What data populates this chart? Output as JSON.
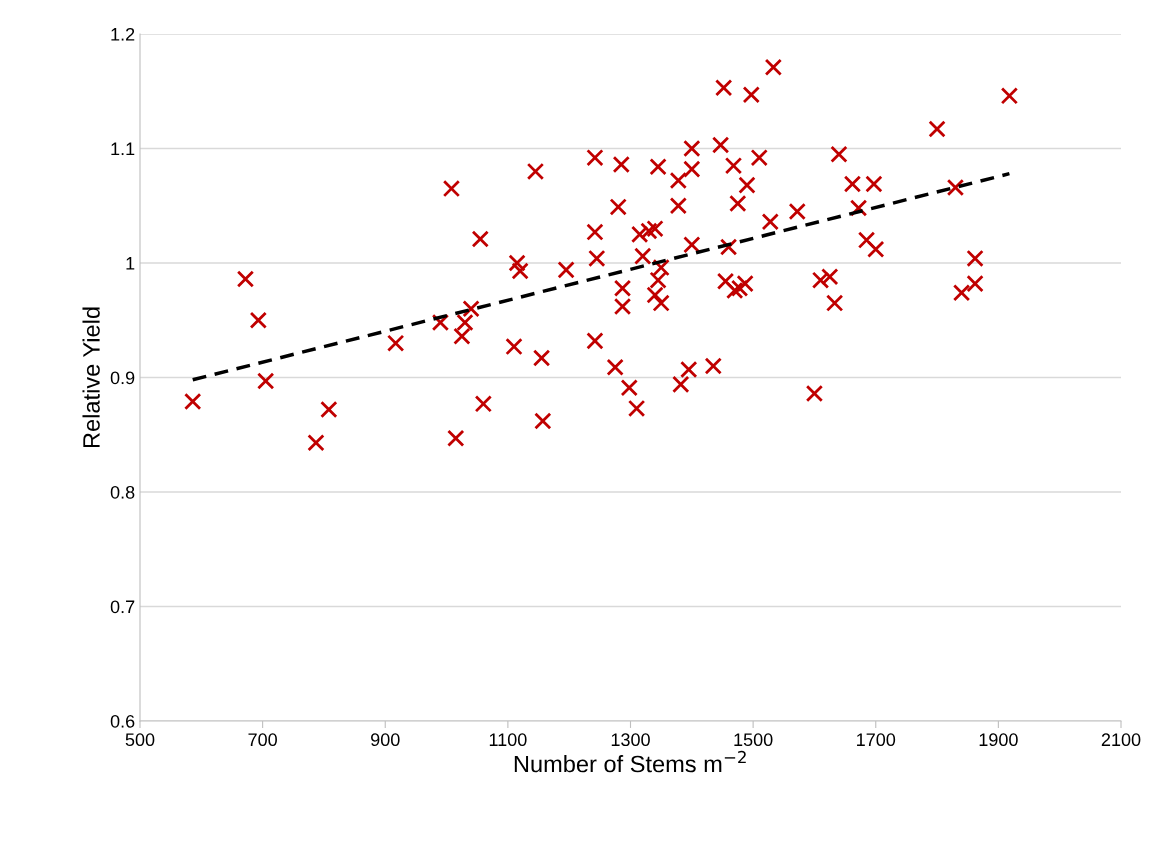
{
  "chart_data": {
    "type": "scatter",
    "xlabel": "Number of Stems m$^{−2}$",
    "ylabel": "Relative Yield",
    "xlim": [
      500,
      2100
    ],
    "xticks": [
      500,
      700,
      900,
      1100,
      1300,
      1500,
      1700,
      1900,
      2100
    ],
    "ylim": [
      0.6,
      1.2
    ],
    "yticks": [
      0.6,
      0.7,
      0.8,
      0.9,
      1,
      1.1,
      1.2
    ],
    "grid": "y",
    "legend": false,
    "series": [
      {
        "color": "#c00000",
        "marker": "cross",
        "x": [
          586,
          672,
          693,
          705,
          787,
          808,
          917,
          990,
          1008,
          1015,
          1025,
          1030,
          1040,
          1055,
          1060,
          1110,
          1115,
          1120,
          1145,
          1155,
          1157,
          1195,
          1242,
          1242,
          1242,
          1245,
          1275,
          1280,
          1285,
          1287,
          1287,
          1298,
          1310,
          1315,
          1320,
          1330,
          1340,
          1340,
          1345,
          1345,
          1350,
          1350,
          1378,
          1378,
          1382,
          1395,
          1400,
          1400,
          1400,
          1435,
          1447,
          1452,
          1455,
          1460,
          1468,
          1470,
          1475,
          1478,
          1487,
          1490,
          1497,
          1510,
          1528,
          1533,
          1572,
          1600,
          1610,
          1625,
          1633,
          1640,
          1662,
          1672,
          1685,
          1697,
          1700,
          1800,
          1830,
          1840,
          1862,
          1862,
          1918
        ],
        "values": [
          0.879,
          0.986,
          0.95,
          0.897,
          0.843,
          0.872,
          0.93,
          0.948,
          1.065,
          0.847,
          0.936,
          0.948,
          0.96,
          1.021,
          0.877,
          0.927,
          1.0,
          0.993,
          1.08,
          0.917,
          0.862,
          0.994,
          1.092,
          1.027,
          0.932,
          1.004,
          0.909,
          1.049,
          1.086,
          0.978,
          0.962,
          0.891,
          0.873,
          1.025,
          1.006,
          1.028,
          1.03,
          0.972,
          1.084,
          0.985,
          0.996,
          0.965,
          1.072,
          1.05,
          0.894,
          0.907,
          1.1,
          1.082,
          1.016,
          0.91,
          1.103,
          1.153,
          0.984,
          1.014,
          1.085,
          0.976,
          1.052,
          0.978,
          0.982,
          1.068,
          1.147,
          1.092,
          1.036,
          1.171,
          1.045,
          0.886,
          0.985,
          0.988,
          0.965,
          1.095,
          1.069,
          1.048,
          1.02,
          1.069,
          1.012,
          1.117,
          1.066,
          0.974,
          1.004,
          0.982,
          1.146
        ]
      },
      {
        "type": "line",
        "color": "#000000",
        "line_style": "dashed",
        "marker": "none",
        "x": [
          586,
          1918
        ],
        "values": [
          0.898,
          1.078
        ]
      }
    ]
  }
}
